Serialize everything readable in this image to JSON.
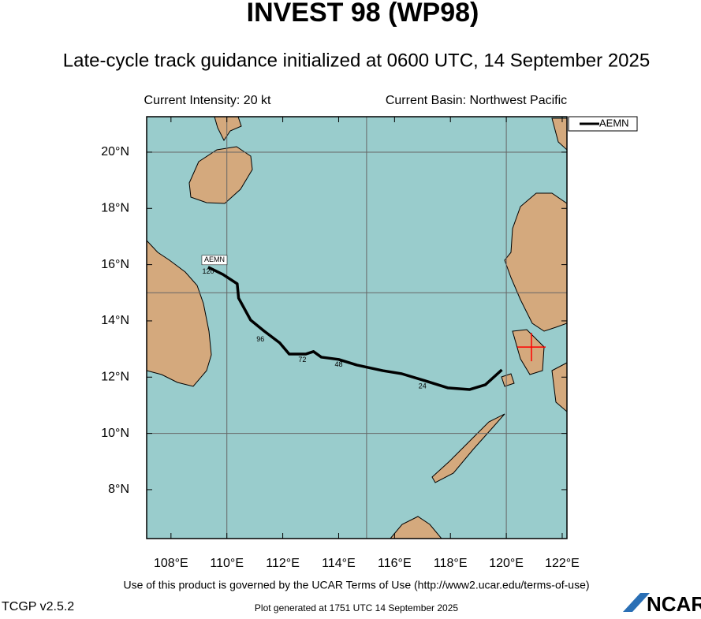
{
  "chart_data": {
    "type": "track",
    "title": "INVEST 98 (WP98)",
    "subtitle": "Late-cycle track guidance initialized at 0600 UTC, 14 September 2025",
    "intensity": "Current Intensity: 20 kt",
    "basin": "Current Basin: Northwest Pacific",
    "terms": "Use of this product is governed by the UCAR Terms of Use (http://www2.ucar.edu/terms-of-use)",
    "version": "TCGP v2.5.2",
    "generated": "Plot generated at 1751 UTC  14 September 2025",
    "logo": "NCAR",
    "xlim": [
      107.13,
      122.17
    ],
    "ylim": [
      6.26,
      21.26
    ],
    "xticks": [
      {
        "value": 108,
        "label": "108°E"
      },
      {
        "value": 110,
        "label": "110°E"
      },
      {
        "value": 112,
        "label": "112°E"
      },
      {
        "value": 114,
        "label": "114°E"
      },
      {
        "value": 116,
        "label": "116°E"
      },
      {
        "value": 118,
        "label": "118°E"
      },
      {
        "value": 120,
        "label": "120°E"
      },
      {
        "value": 122,
        "label": "122°E"
      }
    ],
    "yticks": [
      {
        "value": 8,
        "label": "8°N"
      },
      {
        "value": 10,
        "label": "10°N"
      },
      {
        "value": 12,
        "label": "12°N"
      },
      {
        "value": 14,
        "label": "14°N"
      },
      {
        "value": 16,
        "label": "16°N"
      },
      {
        "value": 18,
        "label": "18°N"
      },
      {
        "value": 20,
        "label": "20°N"
      }
    ],
    "xgrid": [
      110,
      115,
      120
    ],
    "ygrid": [
      10,
      15,
      20
    ],
    "legend": "top-right",
    "x": [
      119.84,
      119.25,
      118.69,
      117.9,
      117.1,
      116.26,
      115.58,
      114.65,
      114.0,
      113.38,
      113.1,
      112.82,
      112.23,
      111.89,
      111.33,
      110.85,
      110.42,
      110.37,
      109.86,
      109.33
    ],
    "series": [
      {
        "name": "AEMN",
        "color": "#000000",
        "values": [
          12.26,
          11.73,
          11.56,
          11.62,
          11.87,
          12.12,
          12.23,
          12.43,
          12.63,
          12.71,
          12.91,
          12.82,
          12.82,
          13.22,
          13.64,
          14.03,
          14.81,
          15.32,
          15.65,
          15.91
        ]
      }
    ],
    "hour_labels": [
      {
        "hour": 24,
        "x": 117.0,
        "y": 11.83
      },
      {
        "hour": 48,
        "x": 114.0,
        "y": 12.6
      },
      {
        "hour": 72,
        "x": 112.7,
        "y": 12.78
      },
      {
        "hour": 96,
        "x": 111.2,
        "y": 13.5
      },
      {
        "hour": 120,
        "x": 109.33,
        "y": 15.91
      }
    ],
    "position": {
      "x": 120.9,
      "y": 13.07,
      "color": "#ff0000"
    }
  }
}
